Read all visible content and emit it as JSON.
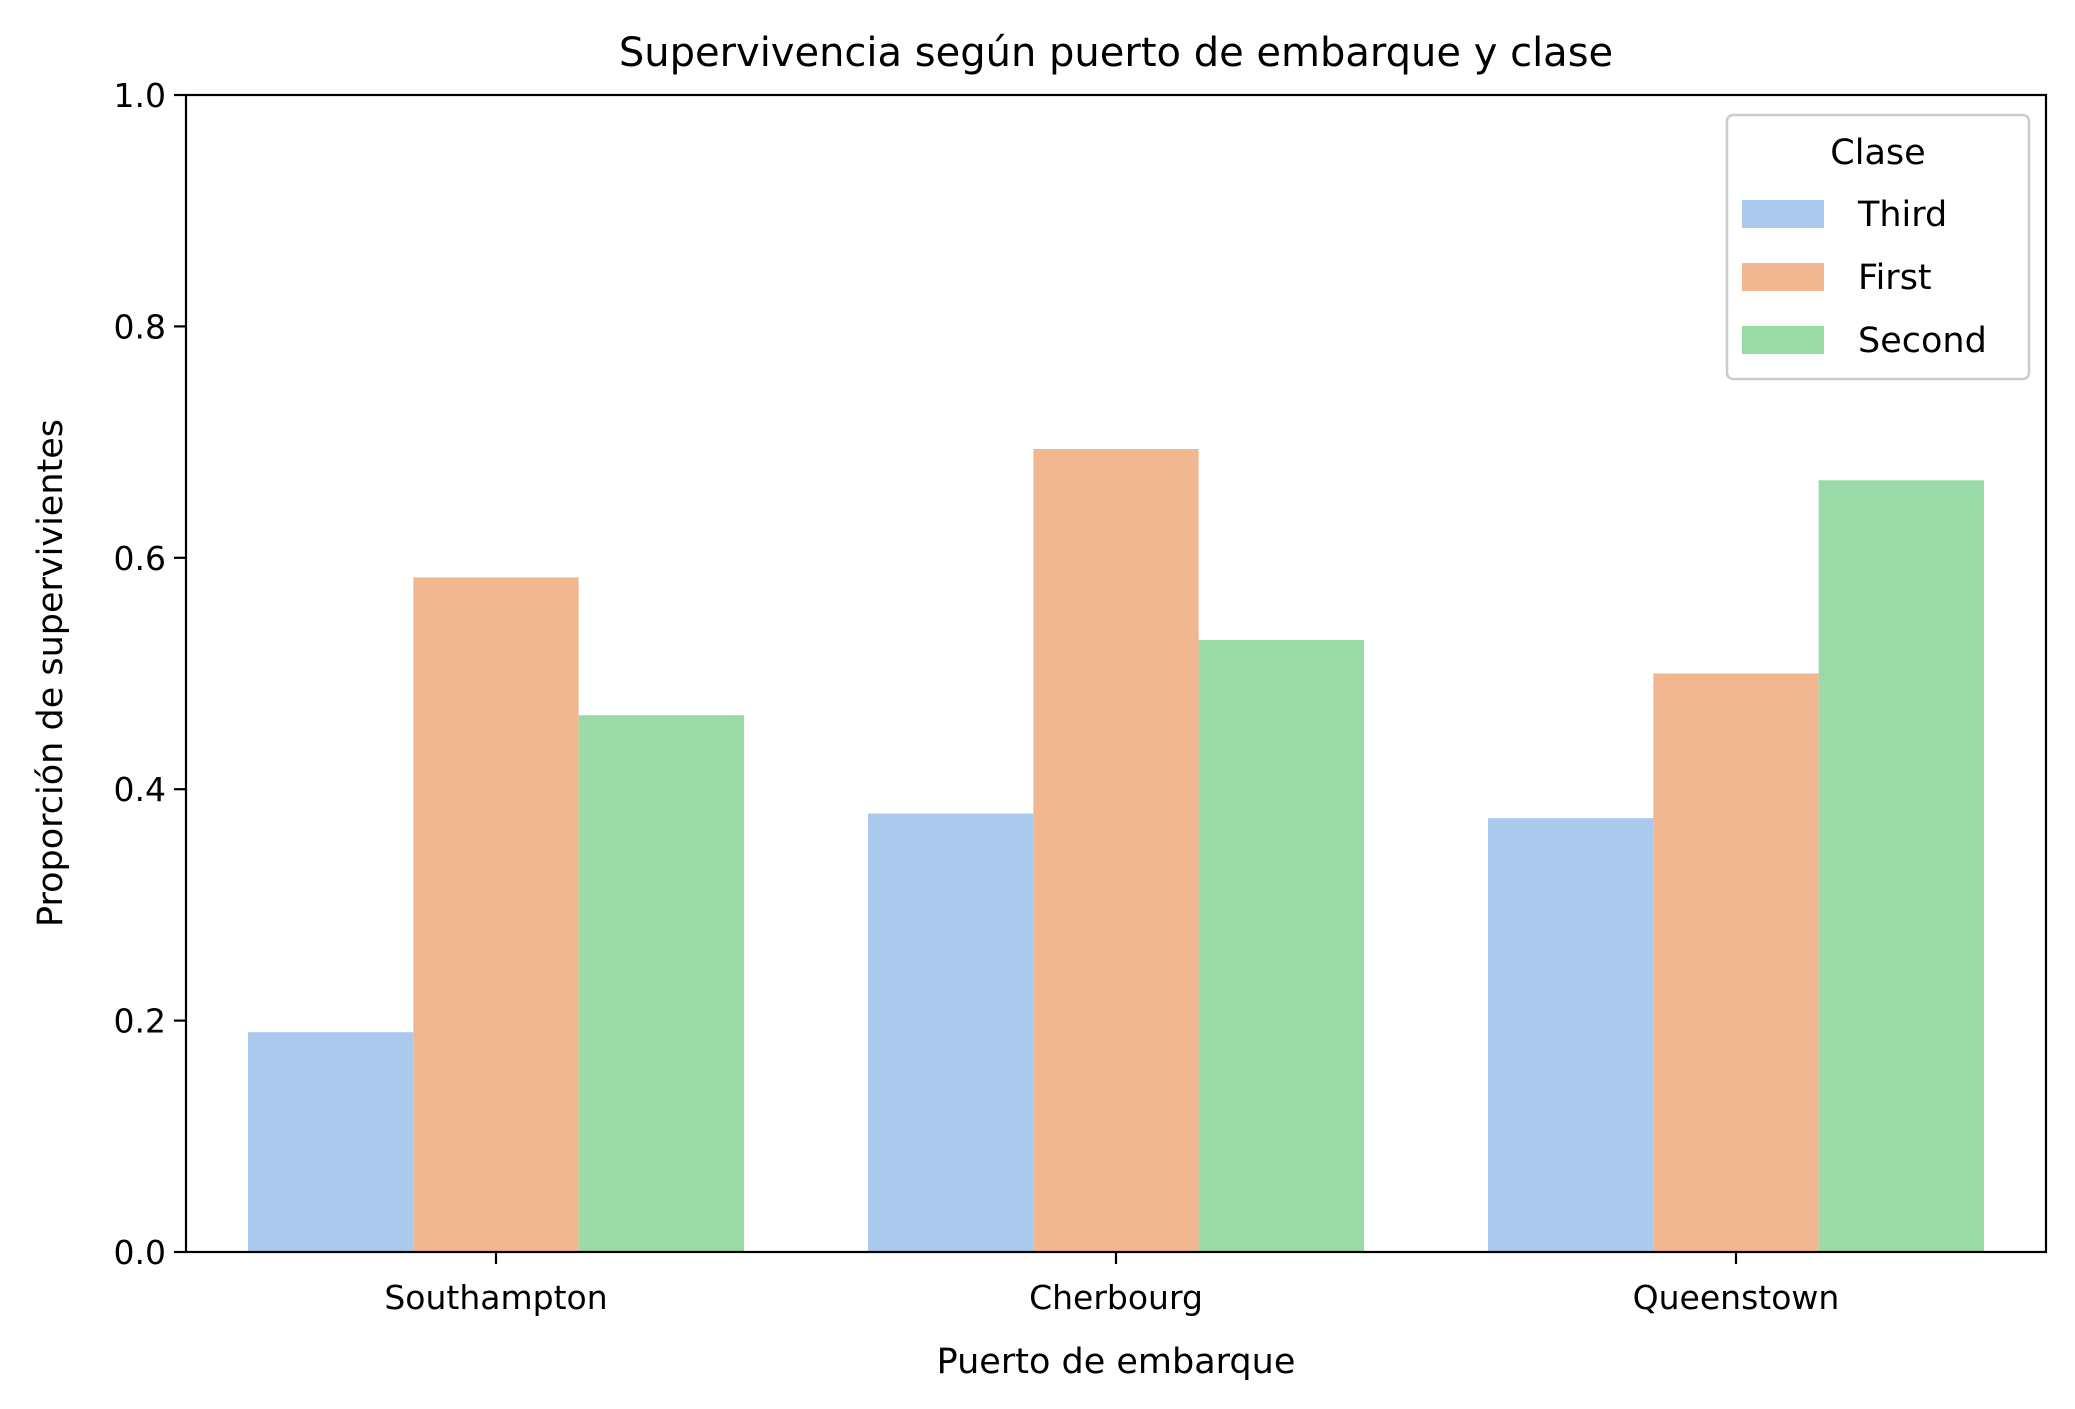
{
  "chart_data": {
    "type": "bar",
    "title": "Supervivencia según puerto de embarque y clase",
    "xlabel": "Puerto de embarque",
    "ylabel": "Proporción de supervivientes",
    "categories": [
      "Southampton",
      "Cherbourg",
      "Queenstown"
    ],
    "ylim": [
      0,
      1.0
    ],
    "yticks": [
      "0.0",
      "0.2",
      "0.4",
      "0.6",
      "0.8",
      "1.0"
    ],
    "grid": false,
    "legend": {
      "title": "Clase",
      "placement": "top-right"
    },
    "series": [
      {
        "name": "Third",
        "color": "#abc9ed",
        "values": [
          0.19,
          0.379,
          0.375
        ]
      },
      {
        "name": "First",
        "color": "#f0b791",
        "values": [
          0.583,
          0.694,
          0.5
        ]
      },
      {
        "name": "Second",
        "color": "#99daa7",
        "values": [
          0.464,
          0.529,
          0.667
        ]
      }
    ]
  }
}
